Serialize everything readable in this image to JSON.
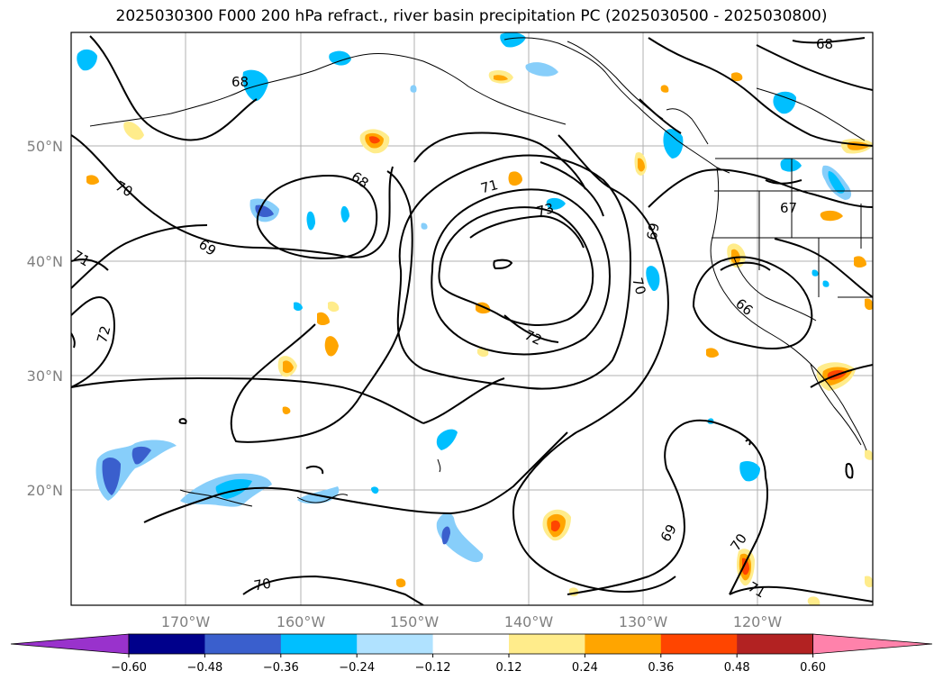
{
  "title": "2025030300 F000 200 hPa refract., river basin precipitation PC (2025030500 - 2025030800)",
  "map": {
    "lon_labels": [
      "170°W",
      "160°W",
      "150°W",
      "140°W",
      "130°W",
      "120°W"
    ],
    "lat_labels": [
      "50°N",
      "40°N",
      "30°N",
      "20°N"
    ],
    "contour_labels": [
      "68",
      "68",
      "68",
      "70",
      "71",
      "72",
      "69",
      "71",
      "73",
      "72",
      "69",
      "70",
      "67",
      "66",
      "69",
      "70",
      "70",
      "71"
    ]
  },
  "colorbar": {
    "colors": [
      "#9932cc",
      "#00008b",
      "#3a5fcd",
      "#00bfff",
      "#b0e2ff",
      "#ffffff",
      "#ffec8b",
      "#ffa500",
      "#ff4500",
      "#b22222",
      "#ff82ab"
    ],
    "ticks": [
      "−0.60",
      "−0.48",
      "−0.36",
      "−0.24",
      "−0.12",
      "0.12",
      "0.24",
      "0.36",
      "0.48",
      "0.60"
    ]
  }
}
